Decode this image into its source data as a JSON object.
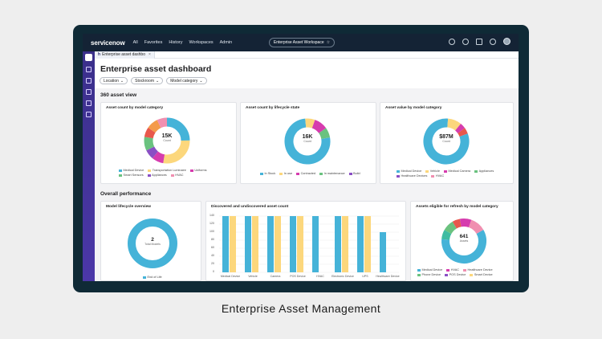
{
  "app": {
    "brand": "servicenow",
    "nav": [
      "All",
      "Favorites",
      "History",
      "Workspaces",
      "Admin"
    ],
    "workspace_pill": "Enterprise Asset Workspace"
  },
  "tab": {
    "label": "Enterprise asset dashbo",
    "icon": "h"
  },
  "page": {
    "title": "Enterprise asset dashboard",
    "filters": [
      "Location",
      "Stockroom",
      "Model category"
    ]
  },
  "sections": {
    "asset_view": "360 asset view",
    "overall": "Overall performance"
  },
  "cards": {
    "model_category": {
      "title": "Asset count by model category",
      "center_value": "15K",
      "center_label": "Count",
      "legend": [
        "Medical Device",
        "Transportation Luminaire",
        "Uniforms",
        "Smart Sensors",
        "Appliances",
        "HVAC"
      ]
    },
    "lifecycle": {
      "title": "Asset count by lifecycle state",
      "center_value": "16K",
      "center_label": "Count",
      "legend": [
        "In Stock",
        "In use",
        "Contracted",
        "In maintenance",
        "Build"
      ]
    },
    "value_category": {
      "title": "Asset value by model category",
      "center_value": "$87M",
      "center_label": "Count",
      "legend": [
        "Medical Device",
        "Vehicle",
        "Medical Camera",
        "Appliances",
        "Healthcare Devices",
        "HVAC"
      ]
    },
    "lifecycle_overview": {
      "title": "Model lifecycle overview",
      "center_value": "2",
      "center_label": "Total Models",
      "legend": [
        "End of Life"
      ]
    },
    "discovered": {
      "title": "Discovered and undiscovered asset count",
      "y_ticks": [
        "140",
        "120",
        "100",
        "80",
        "60",
        "40",
        "20",
        "0"
      ]
    },
    "refresh": {
      "title": "Assets eligible for refresh by model category",
      "center_value": "641",
      "center_label": "Assets",
      "legend": [
        "Medical Device",
        "HVAC",
        "Healthcare Device",
        "Phone Device",
        "POS Device",
        "Smart Device"
      ]
    }
  },
  "chart_data": [
    {
      "type": "bar",
      "title": "Discovered and undiscovered asset count",
      "categories": [
        "Medical Device",
        "Vehicle",
        "Camera",
        "POS Device",
        "HVAC",
        "Electronic Device",
        "UPS",
        "Healthcare Device"
      ],
      "series": [
        {
          "values": [
            140,
            140,
            140,
            140,
            140,
            140,
            140,
            100
          ]
        },
        {
          "values": [
            140,
            140,
            140,
            140,
            0,
            140,
            140,
            0
          ]
        }
      ],
      "ylim": [
        0,
        140
      ]
    }
  ],
  "caption": "Enterprise Asset Management",
  "colors": {
    "blue": "#45b3d8",
    "yellow": "#fcd77c",
    "green": "#6ac27f",
    "purple": "#8a4fc4",
    "magenta": "#d63cae",
    "red": "#e8584c",
    "orange": "#f49a4a",
    "pink": "#f08fb0",
    "teal": "#3fbca2",
    "gray": "#9e9e9e"
  }
}
